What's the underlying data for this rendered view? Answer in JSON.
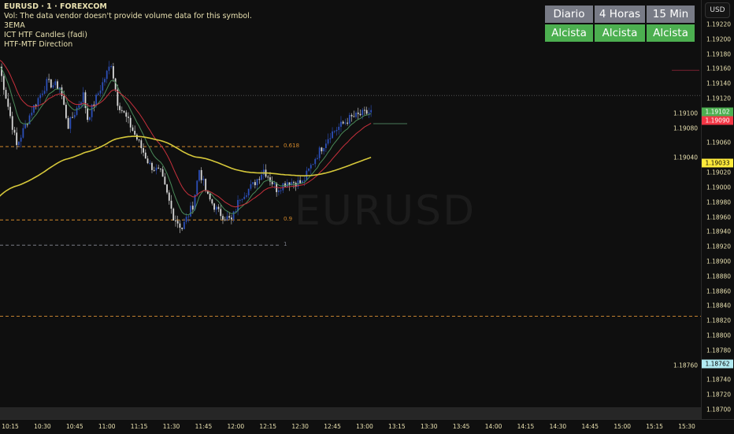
{
  "legend": {
    "symbol": "EURUSD · 1 · FOREXCOM",
    "vol": "Vol: The data vendor doesn't provide volume data for this symbol.",
    "ind1": "3EMA",
    "ind2": "ICT HTF Candles (fadi)",
    "ind3": "HTF-MTF Direction"
  },
  "watermark": "EURUSD",
  "mtf_table": {
    "headers": [
      "Diario",
      "4 Horas",
      "15 Min"
    ],
    "states": [
      "Alcista",
      "Alcista",
      "Alcista"
    ],
    "header_color": "#787b86",
    "state_color": "#4caf50"
  },
  "price_axis": {
    "currency": "USD",
    "labels": [
      "1.19220",
      "1.19200",
      "1.19180",
      "1.19160",
      "1.19140",
      "1.19120",
      "1.19100",
      "1.19080",
      "1.19060",
      "1.19040",
      "1.19020",
      "1.19000",
      "1.18980",
      "1.18960",
      "1.18940",
      "1.18920",
      "1.18900",
      "1.18880",
      "1.18860",
      "1.18840",
      "1.18820",
      "1.18800",
      "1.18780",
      "1.18760",
      "1.18740",
      "1.18720",
      "1.18700"
    ],
    "tags": [
      {
        "value": "1.19102",
        "bg": "#4caf50",
        "fg": "#ffffff"
      },
      {
        "value": "1.19090",
        "bg": "#f23645",
        "fg": "#ffffff"
      },
      {
        "value": "1.19033",
        "bg": "#ffeb3b",
        "fg": "#000000"
      },
      {
        "value": "1.18762",
        "bg": "#b2ebf2",
        "fg": "#000000"
      }
    ]
  },
  "time_axis": [
    "10:15",
    "10:30",
    "10:45",
    "11:00",
    "11:15",
    "11:30",
    "11:45",
    "12:00",
    "12:15",
    "12:30",
    "12:45",
    "13:00",
    "13:15",
    "13:30",
    "13:45",
    "14:00",
    "14:15",
    "14:30",
    "14:45",
    "15:00",
    "15:15",
    "15:30"
  ],
  "fib_levels": [
    {
      "label": "0.618",
      "price": 1.19055,
      "color": "#d4892b"
    },
    {
      "label": "0.9",
      "price": 1.18956,
      "color": "#d4892b"
    },
    {
      "label": "1",
      "price": 1.18922,
      "color": "#787b86"
    }
  ],
  "levels": {
    "orange_dashed": 1.18826,
    "last_dotted": 1.19124,
    "red_marker": 1.19158
  },
  "price_path": [
    [
      "10:10",
      1.19163
    ],
    [
      "10:18",
      1.19056
    ],
    [
      "10:25",
      1.19104
    ],
    [
      "10:32",
      1.19141
    ],
    [
      "10:38",
      1.19136
    ],
    [
      "10:42",
      1.19083
    ],
    [
      "10:49",
      1.19125
    ],
    [
      "10:51",
      1.19093
    ],
    [
      "11:02",
      1.19168
    ],
    [
      "11:05",
      1.19115
    ],
    [
      "11:11",
      1.19083
    ],
    [
      "11:20",
      1.1903
    ],
    [
      "11:25",
      1.19019
    ],
    [
      "11:31",
      1.18961
    ],
    [
      "11:35",
      1.18945
    ],
    [
      "11:40",
      1.18976
    ],
    [
      "11:43",
      1.19024
    ],
    [
      "11:47",
      1.18987
    ],
    [
      "11:52",
      1.18966
    ],
    [
      "11:58",
      1.18955
    ],
    [
      "12:02",
      1.18987
    ],
    [
      "12:08",
      1.19003
    ],
    [
      "12:13",
      1.19024
    ],
    [
      "12:19",
      1.18998
    ],
    [
      "12:24",
      1.19008
    ],
    [
      "12:31",
      1.19006
    ],
    [
      "12:37",
      1.1904
    ],
    [
      "12:44",
      1.19072
    ],
    [
      "12:53",
      1.19093
    ],
    [
      "12:59",
      1.19099
    ],
    [
      "13:03",
      1.19102
    ]
  ],
  "colors": {
    "bull": "#2c4fb8",
    "bear": "#d8d8d8",
    "ema_fast": "#4a8a5a",
    "ema_mid": "#c8303c",
    "ema_slow": "#d6c83a"
  }
}
